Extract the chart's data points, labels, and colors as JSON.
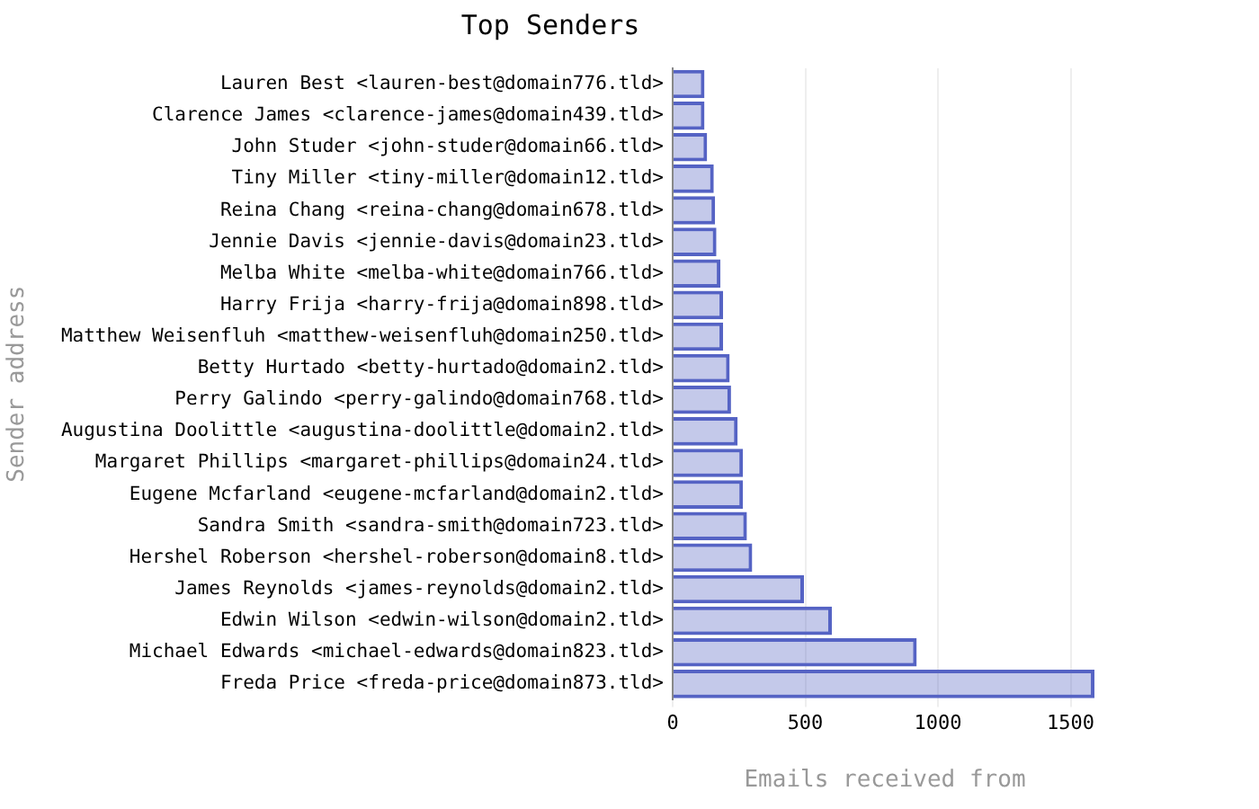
{
  "chart_data": {
    "type": "bar",
    "orientation": "horizontal",
    "title": "Top Senders",
    "xlabel": "Emails received from",
    "ylabel": "Sender address",
    "categories": [
      "Lauren Best <lauren-best@domain776.tld>",
      "Clarence James <clarence-james@domain439.tld>",
      "John Studer <john-studer@domain66.tld>",
      "Tiny Miller <tiny-miller@domain12.tld>",
      "Reina Chang <reina-chang@domain678.tld>",
      "Jennie Davis <jennie-davis@domain23.tld>",
      "Melba White <melba-white@domain766.tld>",
      "Harry Frija <harry-frija@domain898.tld>",
      "Matthew Weisenfluh <matthew-weisenfluh@domain250.tld>",
      "Betty Hurtado <betty-hurtado@domain2.tld>",
      "Perry Galindo <perry-galindo@domain768.tld>",
      "Augustina Doolittle <augustina-doolittle@domain2.tld>",
      "Margaret Phillips <margaret-phillips@domain24.tld>",
      "Eugene Mcfarland <eugene-mcfarland@domain2.tld>",
      "Sandra Smith <sandra-smith@domain723.tld>",
      "Hershel Roberson <hershel-roberson@domain8.tld>",
      "James Reynolds <james-reynolds@domain2.tld>",
      "Edwin Wilson <edwin-wilson@domain2.tld>",
      "Michael Edwards <michael-edwards@domain823.tld>",
      "Freda Price <freda-price@domain873.tld>"
    ],
    "series": [
      {
        "color": "#5563c4",
        "values": [
          120,
          120,
          130,
          155,
          160,
          165,
          180,
          190,
          190,
          215,
          220,
          245,
          265,
          265,
          280,
          300,
          495,
          600,
          920,
          1590
        ]
      }
    ],
    "xlim": [
      0,
      1600
    ],
    "xticks": [
      0,
      500,
      1000,
      1500
    ],
    "grid": "x",
    "legend": false
  }
}
